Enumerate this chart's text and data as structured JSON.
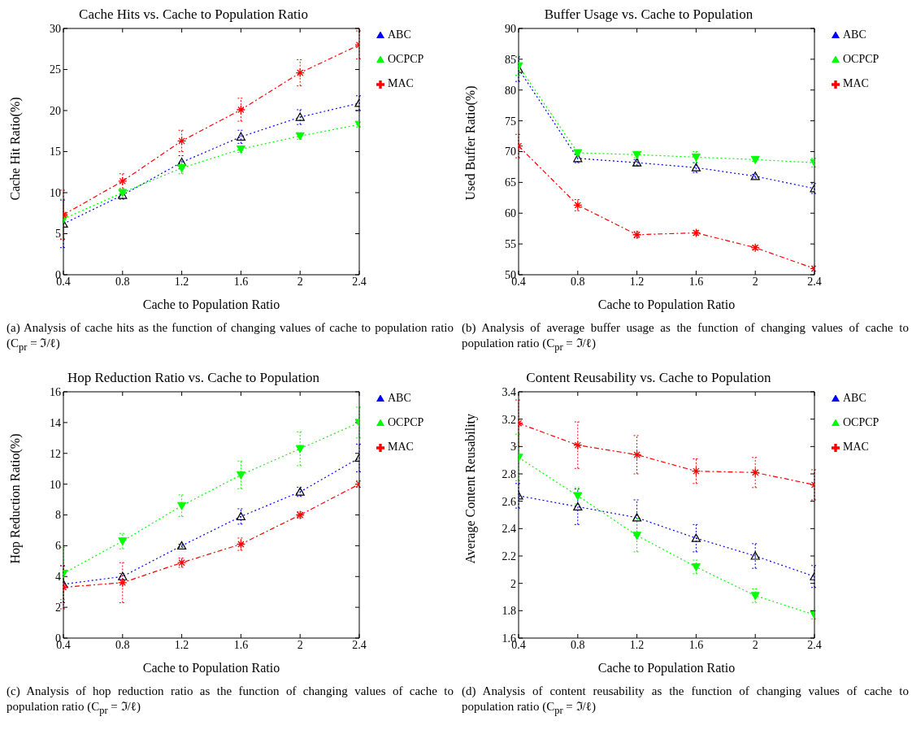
{
  "chart_data": [
    {
      "type": "line",
      "title": "Cache Hits vs. Cache to Population Ratio",
      "xlabel": "Cache to Population Ratio",
      "ylabel": "Cache Hit Ratio(%)",
      "x": [
        0.4,
        0.8,
        1.2,
        1.6,
        2,
        2.4
      ],
      "xlim": [
        0.4,
        2.4
      ],
      "xticks": [
        0.4,
        0.8,
        1.2,
        1.6,
        2,
        2.4
      ],
      "ylim": [
        0,
        30
      ],
      "yticks": [
        0,
        5,
        10,
        15,
        20,
        25,
        30
      ],
      "grid": false,
      "legend": "top right",
      "series": [
        {
          "name": "ABC",
          "color": "#0000ff",
          "marker": "triangle",
          "line_style": "dotted",
          "values": [
            6.2,
            9.7,
            13.7,
            16.8,
            19.2,
            20.9
          ],
          "errors": [
            2.9,
            0.5,
            0.8,
            0.8,
            0.9,
            0.9
          ]
        },
        {
          "name": "OCPCP",
          "color": "#00ff00",
          "marker": "triangle",
          "line_style": "dotted",
          "values": [
            6.8,
            10.0,
            13.0,
            15.3,
            16.9,
            18.3
          ],
          "errors": [
            2.4,
            0.3,
            0.7,
            0.4,
            0.4,
            0.3
          ]
        },
        {
          "name": "MAC",
          "color": "#ff0000",
          "marker": "cross",
          "line_style": "dashed",
          "values": [
            7.3,
            11.4,
            16.3,
            20.1,
            24.6,
            28.0
          ],
          "errors": [
            3.0,
            0.9,
            1.3,
            1.4,
            1.6,
            1.7
          ]
        }
      ],
      "annotations": [
        "(a) Analysis of cache hits as the function of changing values of cache to population ratio (C$_{pr}$ = ℑ/ℓ)"
      ]
    },
    {
      "type": "line",
      "title": "Buffer Usage vs. Cache to Population",
      "xlabel": "Cache to Population Ratio",
      "ylabel": "Used Buffer Ratio(%)",
      "x": [
        0.4,
        0.8,
        1.2,
        1.6,
        2,
        2.4
      ],
      "xlim": [
        0.4,
        2.4
      ],
      "xticks": [
        0.4,
        0.8,
        1.2,
        1.6,
        2,
        2.4
      ],
      "ylim": [
        50,
        90
      ],
      "yticks": [
        50,
        55,
        60,
        65,
        70,
        75,
        80,
        85,
        90
      ],
      "grid": false,
      "legend": "top right",
      "series": [
        {
          "name": "ABC",
          "color": "#0000ff",
          "marker": "triangle",
          "line_style": "dotted",
          "values": [
            83.4,
            68.9,
            68.2,
            67.4,
            66.0,
            64.0
          ],
          "errors": [
            2.0,
            0.7,
            0.5,
            0.8,
            0.3,
            0.8
          ]
        },
        {
          "name": "OCPCP",
          "color": "#00ff00",
          "marker": "triangle",
          "line_style": "dotted",
          "values": [
            83.9,
            69.8,
            69.5,
            69.1,
            68.7,
            68.2
          ],
          "errors": [
            1.5,
            0.3,
            0.5,
            0.9,
            0.3,
            0.7
          ]
        },
        {
          "name": "MAC",
          "color": "#ff0000",
          "marker": "cross",
          "line_style": "dashed",
          "values": [
            70.9,
            61.3,
            56.5,
            56.8,
            54.4,
            51.0
          ],
          "errors": [
            1.9,
            0.9,
            0.5,
            0.4,
            0.3,
            0.4
          ]
        }
      ],
      "annotations": [
        "(b) Analysis of average buffer usage as the function of changing values of cache to population ratio (C$_{pr}$ = ℑ/ℓ)"
      ]
    },
    {
      "type": "line",
      "title": "Hop Reduction Ratio vs. Cache to Population",
      "xlabel": "Cache to Population Ratio",
      "ylabel": "Hop Reduction Ratio(%)",
      "x": [
        0.4,
        0.8,
        1.2,
        1.6,
        2,
        2.4
      ],
      "xlim": [
        0.4,
        2.4
      ],
      "xticks": [
        0.4,
        0.8,
        1.2,
        1.6,
        2,
        2.4
      ],
      "ylim": [
        0,
        16
      ],
      "yticks": [
        0,
        2,
        4,
        6,
        8,
        10,
        12,
        14,
        16
      ],
      "grid": false,
      "legend": "top right",
      "series": [
        {
          "name": "ABC",
          "color": "#0000ff",
          "marker": "triangle",
          "line_style": "dotted",
          "values": [
            3.5,
            4.0,
            6.0,
            7.9,
            9.5,
            11.7
          ],
          "errors": [
            1.2,
            0.2,
            0.1,
            0.5,
            0.3,
            0.9
          ]
        },
        {
          "name": "OCPCP",
          "color": "#00ff00",
          "marker": "triangle",
          "line_style": "dotted",
          "values": [
            4.2,
            6.3,
            8.6,
            10.6,
            12.3,
            14.0
          ],
          "errors": [
            1.7,
            0.5,
            0.7,
            0.9,
            1.1,
            1.0
          ]
        },
        {
          "name": "MAC",
          "color": "#ff0000",
          "marker": "cross",
          "line_style": "dashed",
          "values": [
            3.3,
            3.6,
            4.9,
            6.1,
            8.0,
            10.0
          ],
          "errors": [
            1.4,
            1.3,
            0.3,
            0.4,
            0.2,
            0.2
          ]
        }
      ],
      "annotations": [
        "(c) Analysis of hop reduction ratio as the function of changing values of cache to population ratio (C$_{pr}$ = ℑ/ℓ)"
      ]
    },
    {
      "type": "line",
      "title": "Content Reusability vs. Cache to Population",
      "xlabel": "Cache to Population Ratio",
      "ylabel": "Average Content Reusability",
      "x": [
        0.4,
        0.8,
        1.2,
        1.6,
        2,
        2.4
      ],
      "xlim": [
        0.4,
        2.4
      ],
      "xticks": [
        0.4,
        0.8,
        1.2,
        1.6,
        2,
        2.4
      ],
      "ylim": [
        1.6,
        3.4
      ],
      "yticks": [
        1.6,
        1.8,
        2,
        2.2,
        2.4,
        2.6,
        2.8,
        3,
        3.2,
        3.4
      ],
      "grid": false,
      "legend": "top right",
      "series": [
        {
          "name": "ABC",
          "color": "#0000ff",
          "marker": "triangle",
          "line_style": "dotted",
          "values": [
            2.64,
            2.56,
            2.48,
            2.33,
            2.2,
            2.05
          ],
          "errors": [
            0.09,
            0.13,
            0.13,
            0.1,
            0.09,
            0.08
          ]
        },
        {
          "name": "OCPCP",
          "color": "#00ff00",
          "marker": "triangle",
          "line_style": "dotted",
          "values": [
            2.92,
            2.64,
            2.35,
            2.12,
            1.91,
            1.77
          ],
          "errors": [
            0.17,
            0.06,
            0.12,
            0.05,
            0.05,
            0.03
          ]
        },
        {
          "name": "MAC",
          "color": "#ff0000",
          "marker": "cross",
          "line_style": "dashed",
          "values": [
            3.17,
            3.01,
            2.94,
            2.82,
            2.81,
            2.72
          ],
          "errors": [
            0.17,
            0.17,
            0.14,
            0.09,
            0.11,
            0.11
          ]
        }
      ],
      "annotations": [
        "(d) Analysis of content reusability as the function of changing values of cache to population ratio (C$_{pr}$ = ℑ/ℓ)"
      ]
    }
  ]
}
